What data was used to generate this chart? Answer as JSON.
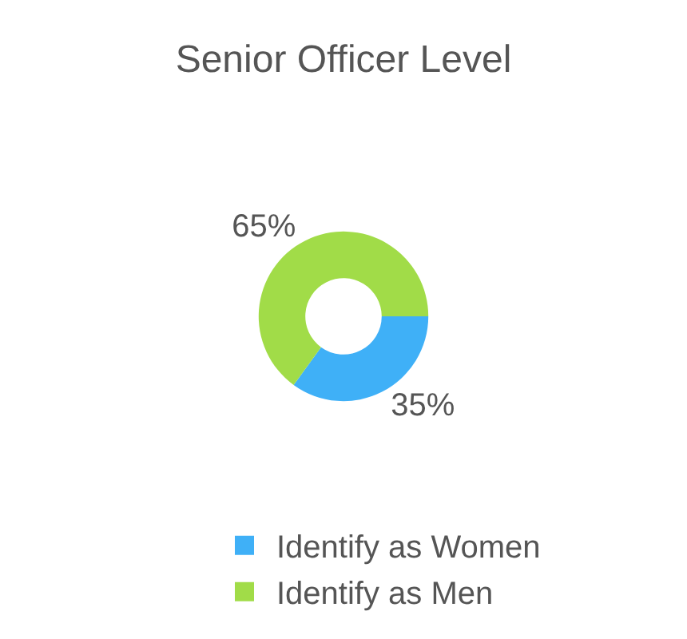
{
  "chart_data": {
    "type": "donut",
    "title": "Senior Officer Level",
    "categories": [
      "Identify as Women",
      "Identify as Men"
    ],
    "values": [
      35,
      65
    ],
    "colors": [
      "#3fb0f7",
      "#a1dc48"
    ],
    "value_labels": [
      "35%",
      "65%"
    ],
    "legend": "bottom"
  }
}
